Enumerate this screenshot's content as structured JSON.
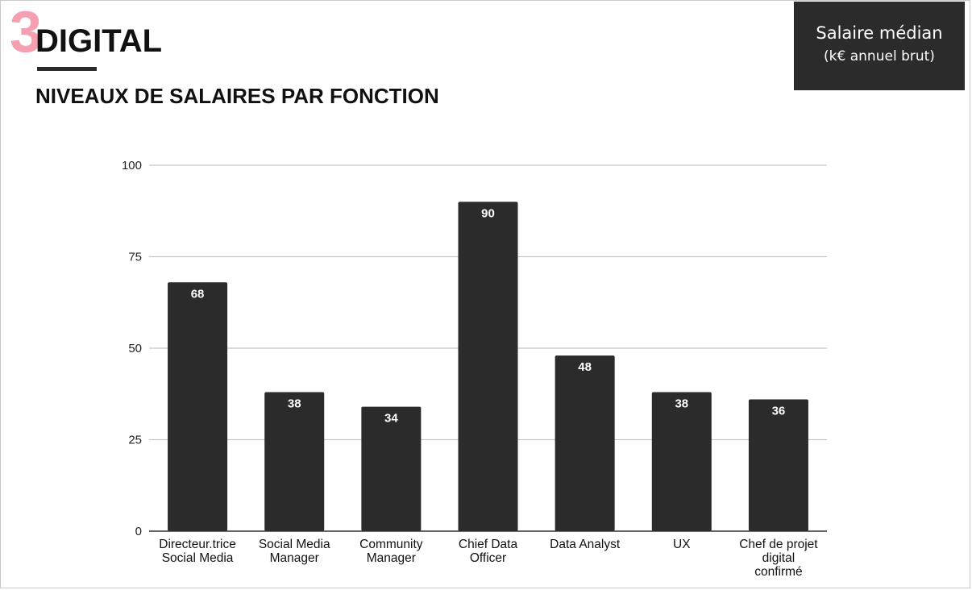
{
  "header": {
    "section_number": "3",
    "section_title": "DIGITAL",
    "subtitle": "NIVEAUX DE SALAIRES PAR FONCTION"
  },
  "legend": {
    "line1": "Salaire médian",
    "line2": "(k€ annuel brut)"
  },
  "colors": {
    "bar": "#2b2b2b",
    "accent_pink": "#f4a0b0",
    "grid": "#c8c8c8",
    "axis": "#333333"
  },
  "chart_data": {
    "type": "bar",
    "title": "",
    "xlabel": "",
    "ylabel": "",
    "ylim": [
      0,
      100
    ],
    "yticks": [
      0,
      25,
      50,
      75,
      100
    ],
    "grid": true,
    "data_labels": true,
    "categories": [
      [
        "Directeur.trice",
        "Social Media"
      ],
      [
        "Social Media",
        "Manager"
      ],
      [
        "Community",
        "Manager"
      ],
      [
        "Chief Data",
        "Officer"
      ],
      [
        "Data Analyst"
      ],
      [
        "UX"
      ],
      [
        "Chef de projet",
        "digital",
        "confirmé"
      ]
    ],
    "values": [
      68,
      38,
      34,
      90,
      48,
      38,
      36
    ]
  }
}
